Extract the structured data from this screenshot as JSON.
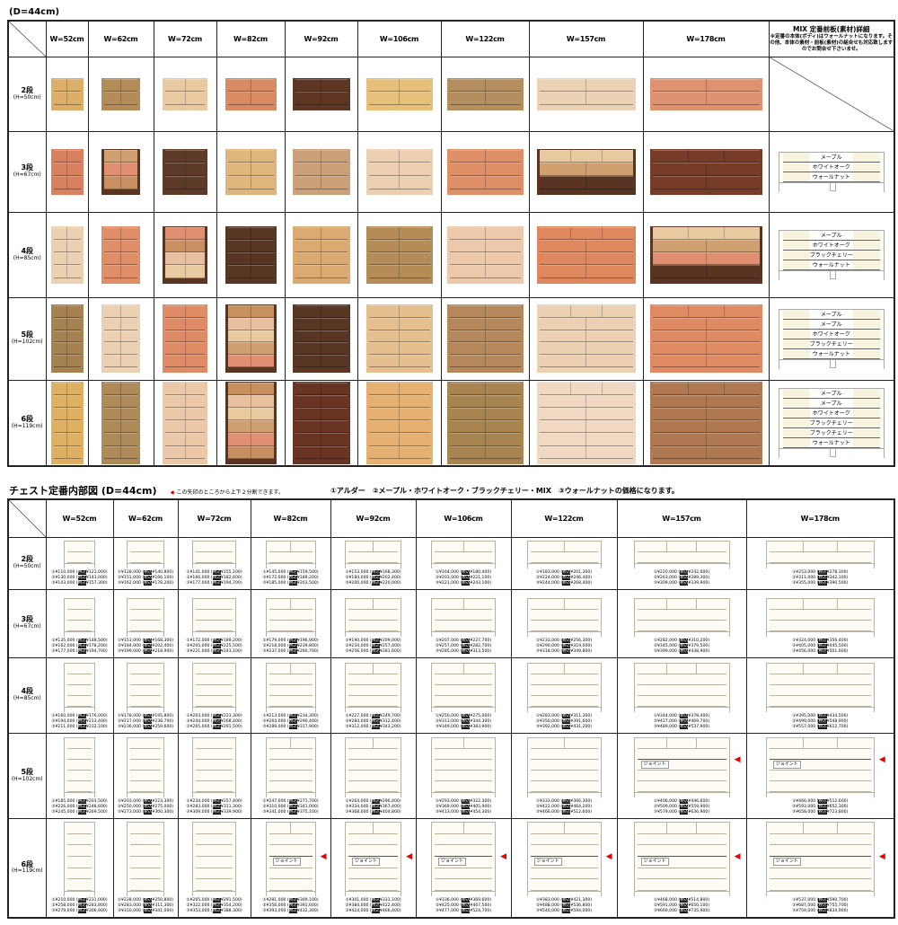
{
  "top": {
    "caption": "(D=44cm)",
    "mix_header": "MIX 定番前板(素材)詳細",
    "mix_note": "※定番の本体(ボディ)はウォールナットになります。その他、本体の素材・前板(素材)の組合せも対応致しますのでお問合せ下さいませ。",
    "widths": [
      "W=52cm",
      "W=62cm",
      "W=72cm",
      "W=82cm",
      "W=92cm",
      "W=106cm",
      "W=122cm",
      "W=157cm",
      "W=178cm"
    ],
    "rows": [
      {
        "label": "2段",
        "sub": "(H=50cm)",
        "colors": [
          "#dcae68",
          "#b48c58",
          "#e9c9a0",
          "#d98a62",
          "#5e3624",
          "#e6bf78",
          "#b48e5e",
          "#ecd2b4",
          "#df9270"
        ],
        "mix": []
      },
      {
        "label": "3段",
        "sub": "(H=67cm)",
        "colors": [
          "#d9805e",
          "mixA",
          "#5e3a28",
          "#dfb57e",
          "#caa07a",
          "#ebcfb0",
          "#de8f68",
          "mixB",
          "#763c28"
        ],
        "mix": [
          "メープル",
          "ホワイトオーク",
          "ウォールナット"
        ]
      },
      {
        "label": "4段",
        "sub": "(H=85cm)",
        "colors": [
          "#ecd0b2",
          "#df8e68",
          "mixA",
          "#583624",
          "#dba972",
          "#b48c58",
          "#ecc9aa",
          "#df8860",
          "mixB"
        ],
        "mix": [
          "メープル",
          "ホワイトオーク",
          "ブラックチェリー",
          "ウォールナット"
        ]
      },
      {
        "label": "5段",
        "sub": "(H=102cm)",
        "colors": [
          "#a68250",
          "#ecd0b2",
          "#df8c66",
          "mixA",
          "#583624",
          "#e6bf8e",
          "#b4885a",
          "#ecd0b2",
          "#df8a62"
        ],
        "mix": [
          "メープル",
          "メープル",
          "ホワイトオーク",
          "ブラックチェリー",
          "ウォールナット"
        ]
      },
      {
        "label": "6段",
        "sub": "(H=119cm)",
        "colors": [
          "#e0b062",
          "#ae8a58",
          "#ecc8a8",
          "mixA",
          "#6a3424",
          "#e6b070",
          "#a88450",
          "#f0d8c2",
          "#b07850"
        ],
        "mix": [
          "メープル",
          "メープル",
          "ホワイトオーク",
          "ブラックチェリー",
          "ブラックチェリー",
          "ウォールナット"
        ]
      }
    ]
  },
  "bottom": {
    "title": "チェスト定番内部図 (D=44cm)",
    "arrow_note": "この矢印のところから上下２分割できます。",
    "price_note": "①アルダー　②メープル・ホワイトオーク・ブラックチェリー・MIX　③ウォールナットの価格になります。",
    "joint": "ジョイント",
    "tax": "税込",
    "marks": [
      "①",
      "②",
      "③"
    ],
    "widths": [
      "W=52cm",
      "W=62cm",
      "W=72cm",
      "W=82cm",
      "W=92cm",
      "W=106cm",
      "W=122cm",
      "W=157cm",
      "W=178cm"
    ],
    "rows": [
      {
        "label": "2段",
        "sub": "(H=50cm)",
        "prices": [
          [
            [
              "¥110,000",
              "¥121,000"
            ],
            [
              "¥130,000",
              "¥143,000"
            ],
            [
              "¥143,000",
              "¥157,300"
            ]
          ],
          [
            [
              "¥128,000",
              "¥140,800"
            ],
            [
              "¥151,000",
              "¥166,100"
            ],
            [
              "¥162,000",
              "¥178,200"
            ]
          ],
          [
            [
              "¥141,000",
              "¥155,100"
            ],
            [
              "¥166,000",
              "¥182,600"
            ],
            [
              "¥177,000",
              "¥194,700"
            ]
          ],
          [
            [
              "¥145,000",
              "¥159,500"
            ],
            [
              "¥172,000",
              "¥189,200"
            ],
            [
              "¥185,000",
              "¥203,500"
            ]
          ],
          [
            [
              "¥153,000",
              "¥168,300"
            ],
            [
              "¥184,000",
              "¥202,400"
            ],
            [
              "¥200,000",
              "¥220,000"
            ]
          ],
          [
            [
              "¥164,000",
              "¥180,400"
            ],
            [
              "¥201,000",
              "¥221,100"
            ],
            [
              "¥221,000",
              "¥243,100"
            ]
          ],
          [
            [
              "¥183,000",
              "¥201,300"
            ],
            [
              "¥224,000",
              "¥246,400"
            ],
            [
              "¥244,000",
              "¥268,400"
            ]
          ],
          [
            [
              "¥220,000",
              "¥242,000"
            ],
            [
              "¥263,000",
              "¥289,300"
            ],
            [
              "¥309,000",
              "¥339,900"
            ]
          ],
          [
            [
              "¥253,000",
              "¥278,300"
            ],
            [
              "¥311,000",
              "¥342,100"
            ],
            [
              "¥355,000",
              "¥390,500"
            ]
          ]
        ]
      },
      {
        "label": "3段",
        "sub": "(H=67cm)",
        "prices": [
          [
            [
              "¥135,000",
              "¥148,500"
            ],
            [
              "¥162,000",
              "¥178,200"
            ],
            [
              "¥177,000",
              "¥194,700"
            ]
          ],
          [
            [
              "¥153,000",
              "¥168,300"
            ],
            [
              "¥184,000",
              "¥202,400"
            ],
            [
              "¥199,000",
              "¥218,900"
            ]
          ],
          [
            [
              "¥172,000",
              "¥189,200"
            ],
            [
              "¥205,000",
              "¥225,500"
            ],
            [
              "¥221,000",
              "¥243,100"
            ]
          ],
          [
            [
              "¥179,000",
              "¥196,900"
            ],
            [
              "¥218,000",
              "¥239,800"
            ],
            [
              "¥237,000",
              "¥260,700"
            ]
          ],
          [
            [
              "¥190,000",
              "¥209,000"
            ],
            [
              "¥234,000",
              "¥257,400"
            ],
            [
              "¥256,000",
              "¥281,600"
            ]
          ],
          [
            [
              "¥207,000",
              "¥227,700"
            ],
            [
              "¥257,000",
              "¥282,700"
            ],
            [
              "¥285,000",
              "¥313,500"
            ]
          ],
          [
            [
              "¥233,000",
              "¥256,300"
            ],
            [
              "¥290,000",
              "¥319,000"
            ],
            [
              "¥318,000",
              "¥349,800"
            ]
          ],
          [
            [
              "¥282,000",
              "¥310,200"
            ],
            [
              "¥345,000",
              "¥379,500"
            ],
            [
              "¥399,000",
              "¥438,900"
            ]
          ],
          [
            [
              "¥324,000",
              "¥356,400"
            ],
            [
              "¥405,000",
              "¥445,500"
            ],
            [
              "¥456,000",
              "¥501,600"
            ]
          ]
        ]
      },
      {
        "label": "4段",
        "sub": "(H=85cm)",
        "prices": [
          [
            [
              "¥160,000",
              "¥176,000"
            ],
            [
              "¥194,000",
              "¥213,400"
            ],
            [
              "¥211,000",
              "¥232,100"
            ]
          ],
          [
            [
              "¥178,000",
              "¥195,800"
            ],
            [
              "¥217,000",
              "¥238,700"
            ],
            [
              "¥236,000",
              "¥259,600"
            ]
          ],
          [
            [
              "¥203,000",
              "¥223,300"
            ],
            [
              "¥244,000",
              "¥268,400"
            ],
            [
              "¥265,000",
              "¥291,500"
            ]
          ],
          [
            [
              "¥213,000",
              "¥234,300"
            ],
            [
              "¥264,000",
              "¥290,400"
            ],
            [
              "¥289,000",
              "¥317,900"
            ]
          ],
          [
            [
              "¥227,000",
              "¥249,700"
            ],
            [
              "¥284,000",
              "¥312,400"
            ],
            [
              "¥312,000",
              "¥343,200"
            ]
          ],
          [
            [
              "¥250,000",
              "¥275,000"
            ],
            [
              "¥313,000",
              "¥344,300"
            ],
            [
              "¥349,000",
              "¥383,900"
            ]
          ],
          [
            [
              "¥283,000",
              "¥311,300"
            ],
            [
              "¥356,000",
              "¥391,600"
            ],
            [
              "¥392,000",
              "¥431,200"
            ]
          ],
          [
            [
              "¥344,000",
              "¥378,400"
            ],
            [
              "¥427,000",
              "¥469,700"
            ],
            [
              "¥489,000",
              "¥537,900"
            ]
          ],
          [
            [
              "¥395,000",
              "¥434,500"
            ],
            [
              "¥499,000",
              "¥548,900"
            ],
            [
              "¥557,000",
              "¥612,700"
            ]
          ]
        ]
      },
      {
        "label": "5段",
        "sub": "(H=102cm)",
        "joint_from": 7,
        "prices": [
          [
            [
              "¥185,000",
              "¥203,500"
            ],
            [
              "¥226,000",
              "¥248,600"
            ],
            [
              "¥245,000",
              "¥269,500"
            ]
          ],
          [
            [
              "¥203,000",
              "¥223,300"
            ],
            [
              "¥250,000",
              "¥275,000"
            ],
            [
              "¥273,000",
              "¥300,300"
            ]
          ],
          [
            [
              "¥234,000",
              "¥257,400"
            ],
            [
              "¥283,000",
              "¥311,300"
            ],
            [
              "¥309,000",
              "¥339,900"
            ]
          ],
          [
            [
              "¥247,000",
              "¥271,700"
            ],
            [
              "¥310,000",
              "¥341,000"
            ],
            [
              "¥341,000",
              "¥375,100"
            ]
          ],
          [
            [
              "¥264,000",
              "¥290,400"
            ],
            [
              "¥334,000",
              "¥367,400"
            ],
            [
              "¥368,000",
              "¥404,800"
            ]
          ],
          [
            [
              "¥293,000",
              "¥322,300"
            ],
            [
              "¥369,000",
              "¥405,900"
            ],
            [
              "¥413,000",
              "¥454,300"
            ]
          ],
          [
            [
              "¥333,000",
              "¥366,300"
            ],
            [
              "¥422,000",
              "¥464,200"
            ],
            [
              "¥466,000",
              "¥512,600"
            ]
          ],
          [
            [
              "¥406,000",
              "¥446,600"
            ],
            [
              "¥509,000",
              "¥559,900"
            ],
            [
              "¥579,000",
              "¥636,900"
            ]
          ],
          [
            [
              "¥466,000",
              "¥512,600"
            ],
            [
              "¥593,000",
              "¥652,300"
            ],
            [
              "¥658,000",
              "¥723,800"
            ]
          ]
        ]
      },
      {
        "label": "6段",
        "sub": "(H=119cm)",
        "joint_from": 3,
        "prices": [
          [
            [
              "¥210,000",
              "¥231,000"
            ],
            [
              "¥258,000",
              "¥283,800"
            ],
            [
              "¥279,000",
              "¥306,900"
            ]
          ],
          [
            [
              "¥228,000",
              "¥250,800"
            ],
            [
              "¥283,000",
              "¥311,300"
            ],
            [
              "¥310,000",
              "¥341,000"
            ]
          ],
          [
            [
              "¥265,000",
              "¥291,500"
            ],
            [
              "¥322,000",
              "¥354,200"
            ],
            [
              "¥353,000",
              "¥388,300"
            ]
          ],
          [
            [
              "¥281,000",
              "¥309,100"
            ],
            [
              "¥356,000",
              "¥391,600"
            ],
            [
              "¥393,000",
              "¥432,300"
            ]
          ],
          [
            [
              "¥301,000",
              "¥331,100"
            ],
            [
              "¥384,000",
              "¥422,400"
            ],
            [
              "¥424,000",
              "¥466,400"
            ]
          ],
          [
            [
              "¥336,000",
              "¥369,600"
            ],
            [
              "¥425,000",
              "¥467,500"
            ],
            [
              "¥477,000",
              "¥524,700"
            ]
          ],
          [
            [
              "¥383,000",
              "¥421,300"
            ],
            [
              "¥488,000",
              "¥536,800"
            ],
            [
              "¥540,000",
              "¥594,000"
            ]
          ],
          [
            [
              "¥468,000",
              "¥514,800"
            ],
            [
              "¥591,000",
              "¥650,100"
            ],
            [
              "¥669,000",
              "¥735,900"
            ]
          ],
          [
            [
              "¥537,000",
              "¥590,700"
            ],
            [
              "¥687,000",
              "¥755,700"
            ],
            [
              "¥759,000",
              "¥834,900"
            ]
          ]
        ]
      }
    ]
  },
  "colors": {
    "arrow": "#e00000",
    "walnut": "#5a3422",
    "light": "#ecd2a8"
  }
}
